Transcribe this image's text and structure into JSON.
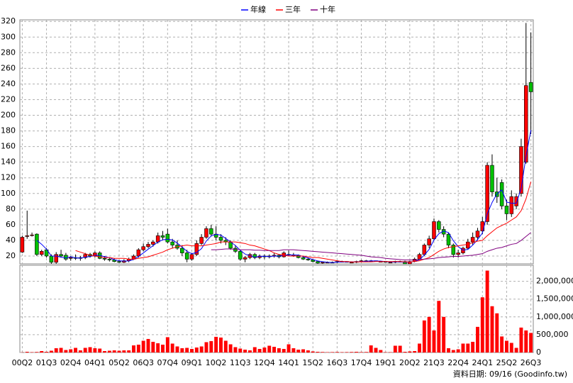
{
  "chart_data": {
    "type": "candlestick",
    "source": "資料日期: 09/16 (Goodinfo.tw)",
    "categories": [
      "00Q2",
      null,
      null,
      null,
      null,
      "01Q3",
      null,
      null,
      null,
      null,
      "02Q4",
      null,
      null,
      null,
      null,
      "04Q1",
      null,
      null,
      null,
      null,
      "05Q2",
      null,
      null,
      null,
      null,
      "06Q3",
      null,
      null,
      null,
      null,
      "07Q4",
      null,
      null,
      null,
      null,
      "09Q1",
      null,
      null,
      null,
      null,
      "10Q2",
      null,
      null,
      null,
      null,
      "11Q3",
      null,
      null,
      null,
      null,
      "12Q4",
      null,
      null,
      null,
      null,
      "14Q1",
      null,
      null,
      null,
      null,
      "15Q2",
      null,
      null,
      null,
      null,
      "16Q3",
      null,
      null,
      null,
      null,
      "17Q4",
      null,
      null,
      null,
      null,
      "19Q1",
      null,
      null,
      null,
      null,
      "20Q2",
      null,
      null,
      null,
      null,
      "21Q3",
      null,
      null,
      null,
      null,
      "22Q4",
      null,
      null,
      null,
      null,
      "24Q1",
      null,
      null,
      null,
      null,
      "25Q2",
      null,
      null,
      null,
      null,
      "26Q3"
    ],
    "open": [
      25,
      45,
      47,
      48,
      22,
      28,
      20,
      12,
      22,
      21,
      17,
      18,
      17,
      18,
      22,
      20,
      24,
      17,
      16,
      15,
      13,
      12,
      14,
      16,
      20,
      28,
      32,
      35,
      38,
      46,
      48,
      38,
      34,
      30,
      24,
      16,
      22,
      36,
      44,
      55,
      48,
      44,
      40,
      38,
      30,
      26,
      16,
      18,
      22,
      18,
      20,
      19,
      20,
      21,
      19,
      22,
      21,
      21,
      18,
      16,
      15,
      13,
      11,
      12,
      12,
      12,
      13,
      13,
      12,
      12,
      13,
      14,
      14,
      14,
      13,
      13,
      12,
      12,
      13,
      13,
      10,
      13,
      16,
      22,
      34,
      42,
      64,
      54,
      48,
      34,
      22,
      24,
      30,
      38,
      44,
      52,
      64,
      136,
      102,
      114,
      84,
      74,
      84,
      100,
      140,
      242
    ],
    "high": [
      46,
      78,
      50,
      49,
      28,
      30,
      22,
      25,
      28,
      24,
      20,
      22,
      20,
      24,
      24,
      26,
      26,
      20,
      18,
      17,
      15,
      16,
      18,
      22,
      30,
      36,
      38,
      40,
      50,
      52,
      55,
      42,
      40,
      34,
      28,
      24,
      40,
      48,
      58,
      60,
      58,
      48,
      44,
      40,
      34,
      28,
      20,
      24,
      24,
      22,
      22,
      22,
      24,
      22,
      26,
      27,
      24,
      22,
      20,
      18,
      16,
      14,
      13,
      13,
      13,
      14,
      14,
      13,
      13,
      14,
      15,
      15,
      15,
      14,
      14,
      13,
      13,
      14,
      14,
      14,
      14,
      18,
      24,
      36,
      46,
      68,
      66,
      58,
      50,
      36,
      28,
      32,
      42,
      50,
      56,
      70,
      140,
      150,
      120,
      118,
      92,
      104,
      100,
      170,
      318,
      306
    ],
    "low": [
      24,
      42,
      45,
      20,
      20,
      18,
      10,
      10,
      18,
      14,
      14,
      15,
      14,
      16,
      18,
      18,
      16,
      14,
      13,
      12,
      11,
      11,
      12,
      15,
      18,
      26,
      30,
      32,
      36,
      40,
      36,
      30,
      28,
      20,
      12,
      14,
      20,
      34,
      42,
      45,
      40,
      36,
      34,
      28,
      24,
      14,
      12,
      16,
      16,
      16,
      16,
      17,
      18,
      17,
      18,
      20,
      19,
      17,
      15,
      14,
      12,
      10,
      10,
      11,
      11,
      11,
      12,
      12,
      11,
      11,
      12,
      13,
      13,
      13,
      12,
      12,
      11,
      11,
      12,
      12,
      10,
      12,
      15,
      20,
      30,
      40,
      50,
      44,
      30,
      18,
      18,
      22,
      28,
      34,
      40,
      48,
      60,
      96,
      88,
      80,
      66,
      70,
      80,
      96,
      138,
      176
    ],
    "close": [
      44,
      46,
      47,
      22,
      26,
      20,
      12,
      22,
      20,
      16,
      18,
      17,
      18,
      22,
      20,
      24,
      17,
      16,
      15,
      13,
      12,
      14,
      16,
      20,
      28,
      32,
      35,
      38,
      46,
      44,
      38,
      34,
      30,
      24,
      16,
      22,
      36,
      44,
      55,
      48,
      44,
      40,
      38,
      30,
      26,
      16,
      18,
      22,
      18,
      20,
      19,
      20,
      21,
      19,
      24,
      22,
      21,
      18,
      16,
      15,
      13,
      11,
      12,
      12,
      12,
      13,
      13,
      12,
      12,
      13,
      14,
      14,
      14,
      13,
      13,
      12,
      12,
      13,
      13,
      10,
      13,
      16,
      22,
      34,
      42,
      64,
      54,
      48,
      34,
      22,
      24,
      30,
      38,
      44,
      52,
      64,
      136,
      102,
      96,
      84,
      74,
      96,
      96,
      160,
      238,
      230
    ],
    "volume": [
      5000,
      20000,
      10000,
      15000,
      40000,
      20000,
      50000,
      120000,
      130000,
      70000,
      90000,
      130000,
      60000,
      130000,
      150000,
      120000,
      110000,
      40000,
      50000,
      60000,
      50000,
      60000,
      60000,
      200000,
      220000,
      330000,
      380000,
      300000,
      260000,
      220000,
      430000,
      250000,
      170000,
      120000,
      130000,
      100000,
      140000,
      170000,
      290000,
      320000,
      440000,
      420000,
      330000,
      230000,
      150000,
      110000,
      80000,
      60000,
      150000,
      100000,
      140000,
      190000,
      160000,
      120000,
      100000,
      230000,
      120000,
      80000,
      90000,
      60000,
      30000,
      20000,
      15000,
      10000,
      12000,
      15000,
      10000,
      12000,
      15000,
      20000,
      12000,
      15000,
      200000,
      130000,
      70000,
      10000,
      10000,
      190000,
      190000,
      20000,
      30000,
      40000,
      250000,
      900000,
      1000000,
      620000,
      1450000,
      1000000,
      120000,
      70000,
      90000,
      250000,
      250000,
      300000,
      720000,
      1550000,
      2300000,
      1300000,
      1100000,
      450000,
      330000,
      270000,
      130000,
      700000,
      620000,
      550000
    ],
    "up_color": "#ff0000",
    "down_color": "#00c000",
    "volume_color": "#ff0000",
    "series": [
      {
        "name": "年線",
        "color": "#0000ff",
        "values": [
          null,
          null,
          null,
          40,
          35,
          28.75,
          20,
          20,
          18.5,
          17.5,
          19,
          17.75,
          17.25,
          18.75,
          19.25,
          21,
          20.75,
          19.25,
          18,
          15.25,
          14,
          13.5,
          13.75,
          15.5,
          19.5,
          24,
          28.75,
          33.25,
          37.75,
          40.75,
          41.5,
          40.5,
          36.5,
          31.5,
          26,
          23,
          24.5,
          29.5,
          39.25,
          45.75,
          47.75,
          46.75,
          42.5,
          38,
          33.5,
          27.5,
          22.5,
          20.5,
          18.5,
          19.5,
          19.75,
          19.25,
          20,
          19.75,
          21,
          21.5,
          21.5,
          21.25,
          19.25,
          17.5,
          15.5,
          13.75,
          12.75,
          12,
          11.75,
          12.25,
          12.5,
          12.5,
          12.5,
          12.5,
          12.75,
          13.25,
          13.75,
          13.75,
          13.5,
          13,
          12.5,
          12.5,
          12.5,
          12,
          12.25,
          13,
          15.25,
          21.25,
          28.5,
          40.5,
          48.5,
          52,
          50,
          39.5,
          32,
          27.5,
          28.5,
          34,
          41,
          49.5,
          74,
          88.5,
          99.5,
          104.5,
          89,
          87.5,
          87.5,
          106.5,
          147.5,
          181
        ]
      },
      {
        "name": "三年",
        "color": "#ff0000",
        "values": [
          null,
          null,
          null,
          null,
          null,
          null,
          null,
          null,
          null,
          null,
          null,
          27,
          25,
          23,
          21,
          20,
          19,
          18,
          18,
          17,
          17,
          17,
          16,
          16,
          17,
          18,
          19,
          21,
          23,
          25,
          28,
          30,
          32,
          33,
          34,
          33,
          33,
          33,
          34,
          35,
          36,
          38,
          38,
          38,
          38,
          37,
          36,
          34,
          33,
          31,
          29,
          27,
          24,
          22,
          21,
          20,
          20,
          20,
          20,
          19,
          18,
          18,
          17,
          16,
          15,
          14,
          13,
          13,
          12.5,
          12.5,
          12.5,
          12.5,
          12.5,
          13,
          13,
          13,
          13,
          13,
          13,
          12.5,
          12.5,
          13,
          14,
          16,
          18,
          22,
          26,
          29,
          31,
          32,
          33,
          34,
          35,
          37,
          39,
          40,
          46,
          51,
          56,
          59,
          62,
          66,
          70,
          78,
          93,
          115
        ]
      },
      {
        "name": "十年",
        "color": "#800080",
        "values": [
          null,
          null,
          null,
          null,
          null,
          null,
          null,
          null,
          null,
          null,
          null,
          null,
          null,
          null,
          null,
          null,
          null,
          null,
          null,
          null,
          null,
          null,
          null,
          null,
          null,
          null,
          null,
          null,
          null,
          null,
          null,
          null,
          null,
          null,
          null,
          null,
          null,
          null,
          null,
          28,
          28,
          28.5,
          29,
          29,
          28.5,
          28,
          28,
          28,
          27.5,
          27.5,
          27,
          27,
          27,
          27,
          28,
          28,
          28,
          27.5,
          27,
          26.5,
          26,
          25.5,
          25,
          24.5,
          24,
          23.5,
          23,
          22.5,
          22,
          21.5,
          21,
          20,
          19,
          18.5,
          18,
          17,
          16.5,
          16,
          15.5,
          15,
          15,
          15,
          15.5,
          16,
          16.5,
          17,
          18,
          18.5,
          19,
          19.5,
          19.5,
          20,
          20.5,
          21,
          22,
          23,
          26,
          28,
          30,
          31,
          33,
          35,
          36,
          40,
          45,
          50
        ]
      }
    ],
    "ylim": [
      10,
      322
    ],
    "yticks": [
      20,
      40,
      60,
      80,
      100,
      120,
      140,
      160,
      180,
      200,
      220,
      240,
      260,
      280,
      300,
      320
    ],
    "y2lim": [
      0,
      2450000
    ],
    "y2ticks": [
      0,
      {
        "value": 500000,
        "label": "500,000"
      },
      {
        "value": 1000000,
        "label": "1,000,000"
      },
      {
        "value": 1500000,
        "label": "1,500,000"
      },
      {
        "value": 2000000,
        "label": "2,000,000"
      }
    ],
    "grid": true
  }
}
